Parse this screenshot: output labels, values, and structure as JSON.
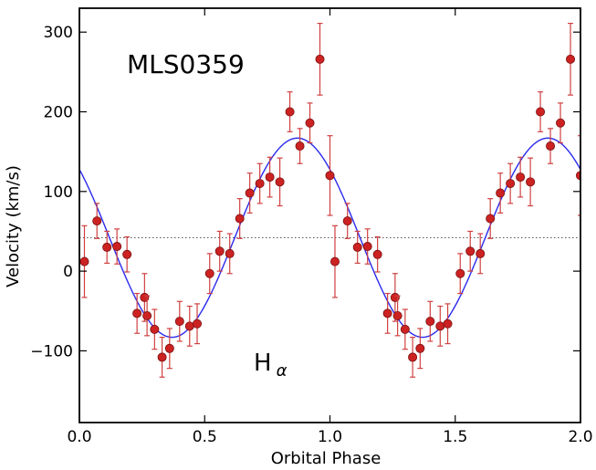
{
  "chart_data": {
    "type": "scatter",
    "title": "MLS0359",
    "xlabel": "Orbital Phase",
    "ylabel": "Velocity (km/s)",
    "xlim": [
      0.0,
      2.0
    ],
    "ylim": [
      -190,
      330
    ],
    "xticks": [
      0.0,
      0.5,
      1.0,
      1.5,
      2.0
    ],
    "xtick_labels": [
      "0.0",
      "0.5",
      "1.0",
      "1.5",
      "2.0"
    ],
    "yticks": [
      -100,
      0,
      100,
      200,
      300
    ],
    "ytick_labels": [
      "−100",
      "0",
      "100",
      "200",
      "300"
    ],
    "grid": false,
    "legend": "none",
    "annotation": {
      "main": "H",
      "sub": "α"
    },
    "colors": {
      "points": "#cc2222",
      "errorbars": "#d04040",
      "fit": "#2a2aee",
      "mean_line": "#555555"
    },
    "mean_line": 42,
    "fit": {
      "gamma": 42,
      "amplitude": 125,
      "phase_zero": 0.87
    },
    "series": [
      {
        "x": [
          0.02,
          0.07,
          0.11,
          0.15,
          0.19,
          0.23,
          0.26,
          0.27,
          0.3,
          0.33,
          0.36,
          0.4,
          0.44,
          0.47,
          0.52,
          0.56,
          0.6,
          0.64,
          0.68,
          0.72,
          0.76,
          0.8,
          0.84,
          0.88,
          0.92,
          0.96,
          1.0
        ],
        "y": [
          12,
          63,
          30,
          31,
          21,
          -53,
          -33,
          -56,
          -73,
          -108,
          -97,
          -63,
          -69,
          -66,
          -3,
          25,
          22,
          66,
          98,
          110,
          118,
          112,
          200,
          157,
          186,
          266,
          120
        ],
        "yerr": [
          45,
          22,
          20,
          22,
          22,
          25,
          30,
          25,
          25,
          25,
          25,
          25,
          25,
          25,
          25,
          25,
          25,
          25,
          25,
          25,
          25,
          30,
          25,
          22,
          25,
          45,
          50
        ]
      }
    ]
  }
}
